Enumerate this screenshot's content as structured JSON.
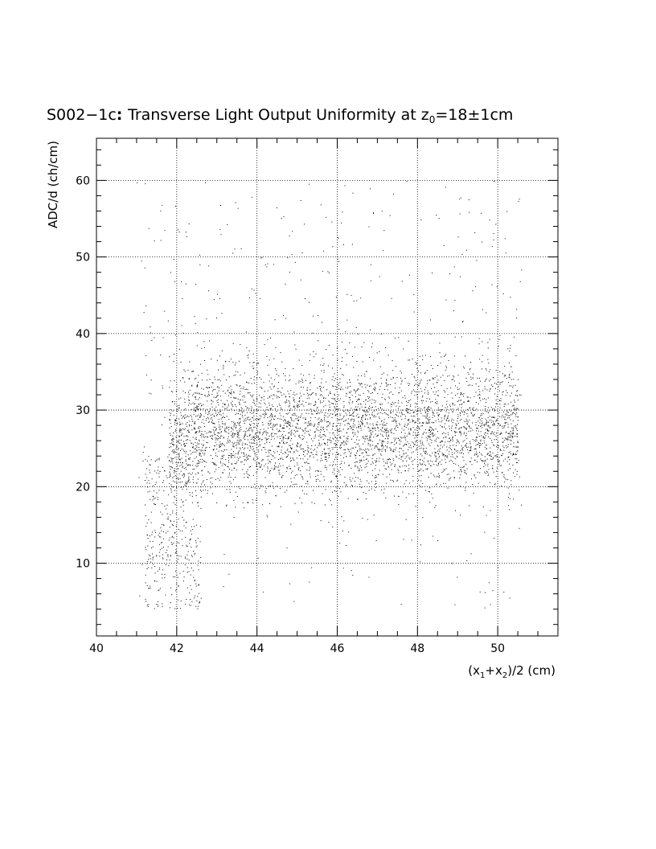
{
  "chart_data": {
    "type": "scatter",
    "title": {
      "prefix": "S002−1c",
      "main": "Transverse Light Output Uniformity at z",
      "sub": "0",
      "suffix": "=18±1cm"
    },
    "ylabel": "ADC/d (ch/cm)",
    "xlabel": {
      "parts": [
        {
          "t": "(x",
          "sub": false
        },
        {
          "t": "1",
          "sub": true
        },
        {
          "t": "+x",
          "sub": false
        },
        {
          "t": "2",
          "sub": true
        },
        {
          "t": ")/2 (cm)",
          "sub": false
        }
      ]
    },
    "xlim": [
      40,
      51.5
    ],
    "ylim": [
      0.5,
      65.5
    ],
    "x_ticks": [
      40,
      42,
      44,
      46,
      48,
      50
    ],
    "y_ticks": [
      10,
      20,
      30,
      40,
      50,
      60
    ],
    "grid": true,
    "marker_color": "#000000",
    "population": {
      "n_points": 5000,
      "x_range": [
        41.0,
        50.6
      ],
      "core_band": {
        "y_center": 27.5,
        "y_spread": 4.0
      },
      "low_tail": {
        "x_range": [
          41.2,
          42.6
        ],
        "y_range": [
          4,
          24
        ]
      },
      "high_scatter": {
        "y_range": [
          32,
          60
        ]
      }
    }
  }
}
